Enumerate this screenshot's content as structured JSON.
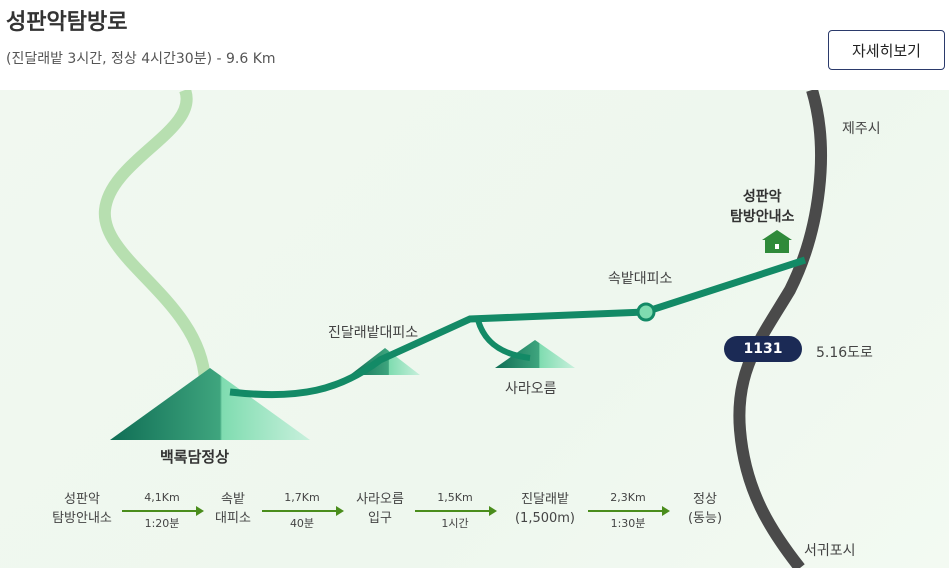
{
  "header": {
    "title": "성판악탐방로",
    "subtitle": "(진달래밭 3시간, 정상 4시간30분) - 9.6 Km",
    "more_button": "자세히보기"
  },
  "map": {
    "labels": {
      "jeju_city": "제주시",
      "visitor_center": "성판악\n탐방안내소",
      "sokbat": "속밭대피소",
      "jindallaebat": "진달래밭대피소",
      "sara": "사라오름",
      "summit": "백록담정상",
      "road_number": "1131",
      "road_name": "5.16도로",
      "seogwipo": "서귀포시"
    },
    "colors": {
      "trail": "#138a66",
      "road": "#4a4a4a",
      "arrow": "#4a8d1c"
    }
  },
  "route": {
    "stops": [
      {
        "label": "성판악\n탐방안내소"
      },
      {
        "label": "속밭\n대피소"
      },
      {
        "label": "사라오름\n입구"
      },
      {
        "label": "진달래밭\n(1,500m)"
      },
      {
        "label": "정상\n(동능)"
      }
    ],
    "legs": [
      {
        "distance": "4,1Km",
        "time": "1:20분"
      },
      {
        "distance": "1,7Km",
        "time": "40분"
      },
      {
        "distance": "1,5Km",
        "time": "1시간"
      },
      {
        "distance": "2,3Km",
        "time": "1:30분"
      }
    ]
  }
}
